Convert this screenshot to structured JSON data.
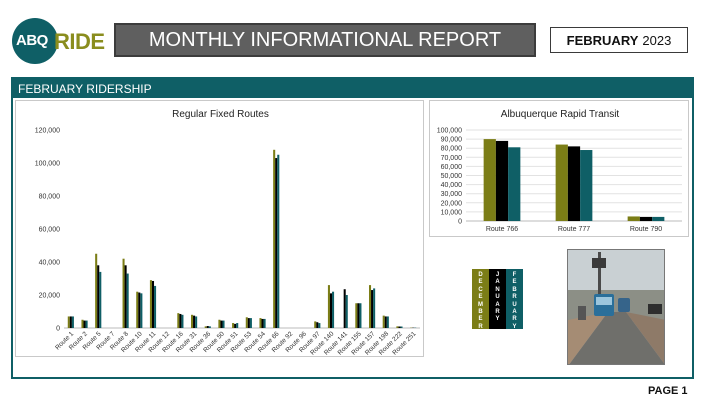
{
  "header": {
    "logo_abq": "ABQ",
    "logo_ride": "RIDE",
    "title": "MONTHLY INFORMATIONAL REPORT",
    "month_bold": "FEBRUARY",
    "year": "2023"
  },
  "section": {
    "title": "FEBRUARY RIDERSHIP"
  },
  "legend_tiles": [
    {
      "label": "DECEMBER",
      "color": "#7b7d16"
    },
    {
      "label": "JANUARY",
      "color": "#000000"
    },
    {
      "label": "FEBRUARY",
      "color": "#0f5f66"
    }
  ],
  "photo": {
    "icon": "bus-street-photo"
  },
  "footer": {
    "page": "PAGE 1"
  },
  "colors": {
    "december": "#7b7d16",
    "january": "#000000",
    "february": "#0f5f66",
    "accent": "#0f5f66"
  },
  "chart_data": [
    {
      "type": "bar",
      "title": "Regular Fixed Routes",
      "categories": [
        "Route 1",
        "Route 2",
        "Route 5",
        "Route 7",
        "Route 8",
        "Route 10",
        "Route 11",
        "Route 12",
        "Route 16",
        "Route 31",
        "Route 36",
        "Route 50",
        "Route 51",
        "Route 53",
        "Route 54",
        "Route 66",
        "Route 92",
        "Route 96",
        "Route 97",
        "Route 140",
        "Route 141",
        "Route 155",
        "Route 157",
        "Route 198",
        "Route 222",
        "Route 251"
      ],
      "series": [
        {
          "name": "DECEMBER",
          "values": [
            7000,
            5000,
            45000,
            0,
            42000,
            22000,
            29000,
            0,
            9000,
            8000,
            1000,
            5000,
            3000,
            6500,
            6000,
            108000,
            0,
            0,
            4000,
            26000,
            0,
            15000,
            26000,
            7500,
            1000,
            200
          ]
        },
        {
          "name": "JANUARY",
          "values": [
            7000,
            4500,
            38000,
            0,
            38000,
            21500,
            28500,
            0,
            8500,
            7500,
            1200,
            4500,
            2500,
            6000,
            5500,
            103000,
            0,
            0,
            3500,
            21000,
            23500,
            15000,
            23000,
            7000,
            900,
            200
          ]
        },
        {
          "name": "FEBRUARY",
          "values": [
            7000,
            4500,
            34000,
            0,
            33000,
            21000,
            25500,
            0,
            8000,
            7000,
            1000,
            4500,
            3000,
            6000,
            5500,
            105000,
            0,
            0,
            3000,
            22000,
            20000,
            15000,
            24000,
            7000,
            900,
            200
          ]
        }
      ],
      "ylim": [
        0,
        120000
      ],
      "yticks": [
        "0",
        "20,000",
        "40,000",
        "60,000",
        "80,000",
        "100,000",
        "120,000"
      ]
    },
    {
      "type": "bar",
      "title": "Albuquerque Rapid Transit",
      "categories": [
        "Route 766",
        "Route 777",
        "Route 790"
      ],
      "series": [
        {
          "name": "DECEMBER",
          "values": [
            90000,
            84000,
            5000
          ]
        },
        {
          "name": "JANUARY",
          "values": [
            88000,
            82000,
            4500
          ]
        },
        {
          "name": "FEBRUARY",
          "values": [
            81000,
            78000,
            4500
          ]
        }
      ],
      "ylim": [
        0,
        100000
      ],
      "yticks": [
        "0",
        "10,000",
        "20,000",
        "30,000",
        "40,000",
        "50,000",
        "60,000",
        "70,000",
        "80,000",
        "90,000",
        "100,000"
      ],
      "grid": true
    }
  ]
}
